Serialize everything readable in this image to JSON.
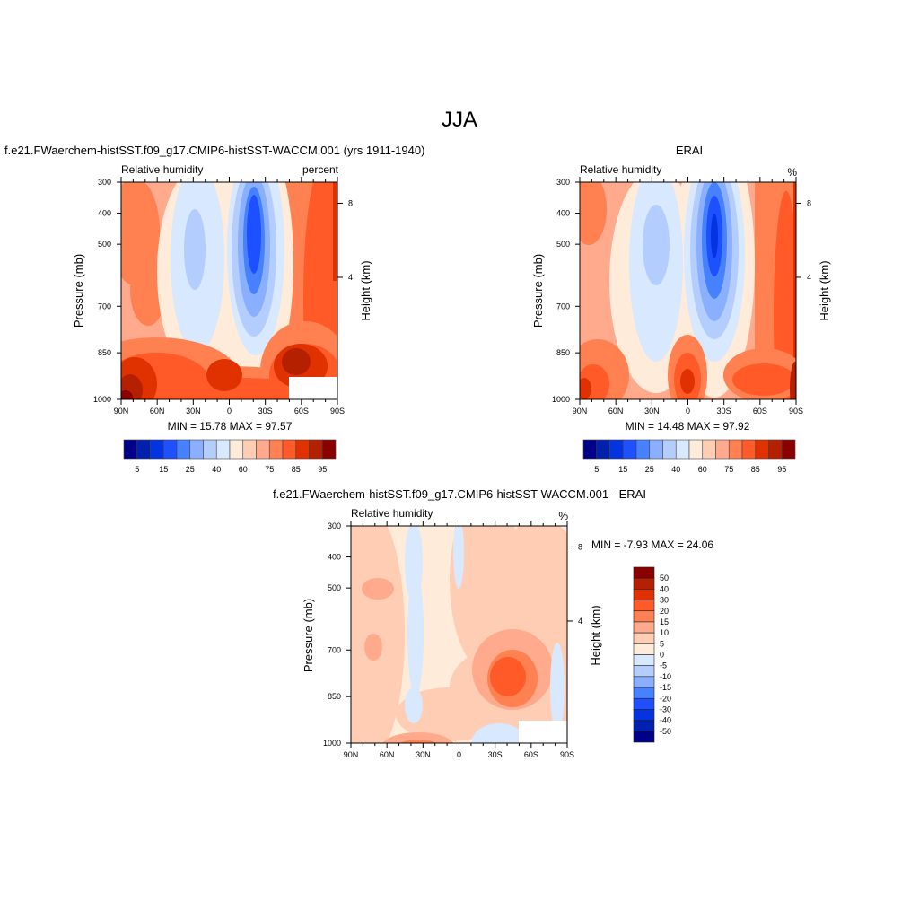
{
  "figure_title": "JJA",
  "palette": [
    "#00008B",
    "#0020B0",
    "#0434E0",
    "#1E50FF",
    "#4682FF",
    "#8AAFFF",
    "#B4CDFF",
    "#D7E8FF",
    "#FFEBD9",
    "#FFCDB4",
    "#FFAA8C",
    "#FF8050",
    "#FF5A28",
    "#E03200",
    "#B42000",
    "#8B0000"
  ],
  "chart_data": [
    {
      "type": "heatmap",
      "title": "f.e21.FWaerchem-histSST.f09_g17.CMIP6-histSST-WACCM.001 (yrs 1911-1940)",
      "left_subtitle": "Relative humidity",
      "right_subtitle": "percent",
      "ylabel": "Pressure (mb)",
      "y2label": "Height (km)",
      "yticks": [
        "300",
        "400",
        "500",
        "700",
        "850",
        "1000"
      ],
      "y2ticks": [
        "8",
        "4"
      ],
      "xticks": [
        "90N",
        "60N",
        "30N",
        "0",
        "30S",
        "60S",
        "90S"
      ],
      "ylim": [
        300,
        1000
      ],
      "stats": "MIN =  15.78  MAX =  97.57",
      "min": 15.78,
      "max": 97.57,
      "colorbar_labels": [
        "5",
        "15",
        "25",
        "40",
        "60",
        "75",
        "85",
        "95"
      ]
    },
    {
      "type": "heatmap",
      "title": "ERAI",
      "left_subtitle": "Relative humidity",
      "right_subtitle": "%",
      "ylabel": "Pressure (mb)",
      "y2label": "Height (km)",
      "yticks": [
        "300",
        "400",
        "500",
        "700",
        "850",
        "1000"
      ],
      "y2ticks": [
        "8",
        "4"
      ],
      "xticks": [
        "90N",
        "60N",
        "30N",
        "0",
        "30S",
        "60S",
        "90S"
      ],
      "ylim": [
        300,
        1000
      ],
      "stats": "MIN =  14.48  MAX =  97.92",
      "min": 14.48,
      "max": 97.92,
      "colorbar_labels": [
        "5",
        "15",
        "25",
        "40",
        "60",
        "75",
        "85",
        "95"
      ]
    },
    {
      "type": "heatmap",
      "title": "f.e21.FWaerchem-histSST.f09_g17.CMIP6-histSST-WACCM.001 - ERAI",
      "left_subtitle": "Relative humidity",
      "right_subtitle": "%",
      "ylabel": "Pressure (mb)",
      "y2label": "Height (km)",
      "yticks": [
        "300",
        "400",
        "500",
        "700",
        "850",
        "1000"
      ],
      "y2ticks": [
        "8",
        "4"
      ],
      "xticks": [
        "90N",
        "60N",
        "30N",
        "0",
        "30S",
        "60S",
        "90S"
      ],
      "ylim": [
        300,
        1000
      ],
      "stats": "MIN =  -7.93  MAX =  24.06",
      "min": -7.93,
      "max": 24.06,
      "colorbar_labels": [
        "50",
        "40",
        "30",
        "20",
        "15",
        "10",
        "5",
        "0",
        "-5",
        "-10",
        "-15",
        "-20",
        "-30",
        "-40",
        "-50"
      ]
    }
  ]
}
